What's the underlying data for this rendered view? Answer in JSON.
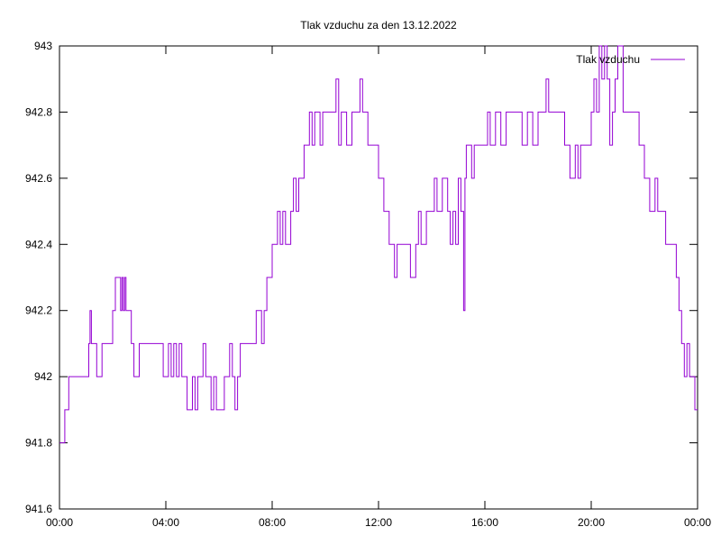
{
  "chart_data": {
    "type": "line",
    "title": "Tlak vzduchu za den 13.12.2022",
    "xlabel": "",
    "ylabel": "",
    "x_axis": {
      "min": "00:00",
      "max": "24:00",
      "ticks": [
        {
          "value": 0,
          "label": "00:00"
        },
        {
          "value": 4,
          "label": "04:00"
        },
        {
          "value": 8,
          "label": "08:00"
        },
        {
          "value": 12,
          "label": "12:00"
        },
        {
          "value": 16,
          "label": "16:00"
        },
        {
          "value": 20,
          "label": "20:00"
        },
        {
          "value": 24,
          "label": "00:00"
        }
      ]
    },
    "y_axis": {
      "min": 941.6,
      "max": 943.0,
      "ticks": [
        {
          "value": 941.6,
          "label": "941.6"
        },
        {
          "value": 941.8,
          "label": "941.8"
        },
        {
          "value": 942.0,
          "label": "942"
        },
        {
          "value": 942.2,
          "label": "942.2"
        },
        {
          "value": 942.4,
          "label": "942.4"
        },
        {
          "value": 942.6,
          "label": "942.6"
        },
        {
          "value": 942.8,
          "label": "942.8"
        },
        {
          "value": 943.0,
          "label": "943"
        }
      ]
    },
    "grid": false,
    "legend": {
      "position": "top-right",
      "entries": [
        "Tlak vzduchu"
      ]
    },
    "series": [
      {
        "name": "Tlak vzduchu",
        "color": "#9400d3",
        "x_unit": "hours",
        "x": [
          0.0,
          0.1,
          0.2,
          0.3,
          0.35,
          0.5,
          1.0,
          1.1,
          1.15,
          1.2,
          1.3,
          1.4,
          1.6,
          1.9,
          2.0,
          2.1,
          2.2,
          2.3,
          2.35,
          2.4,
          2.45,
          2.5,
          2.6,
          2.7,
          2.8,
          2.9,
          3.0,
          3.1,
          3.3,
          3.5,
          3.7,
          3.8,
          3.9,
          4.0,
          4.1,
          4.2,
          4.3,
          4.4,
          4.5,
          4.6,
          4.7,
          4.8,
          4.9,
          5.0,
          5.1,
          5.2,
          5.3,
          5.4,
          5.5,
          5.6,
          5.7,
          5.8,
          5.9,
          6.0,
          6.2,
          6.4,
          6.5,
          6.6,
          6.7,
          6.8,
          6.9,
          7.0,
          7.2,
          7.4,
          7.5,
          7.6,
          7.7,
          7.8,
          7.9,
          8.0,
          8.1,
          8.2,
          8.3,
          8.4,
          8.5,
          8.6,
          8.7,
          8.8,
          8.9,
          9.0,
          9.2,
          9.4,
          9.5,
          9.6,
          9.8,
          9.9,
          10.0,
          10.2,
          10.4,
          10.5,
          10.6,
          10.8,
          11.0,
          11.2,
          11.3,
          11.4,
          11.6,
          11.8,
          12.0,
          12.2,
          12.4,
          12.5,
          12.6,
          12.7,
          12.8,
          13.0,
          13.2,
          13.4,
          13.5,
          13.6,
          13.8,
          14.0,
          14.1,
          14.2,
          14.4,
          14.6,
          14.7,
          14.8,
          14.9,
          15.0,
          15.1,
          15.2,
          15.25,
          15.3,
          15.4,
          15.5,
          15.6,
          15.8,
          16.0,
          16.1,
          16.2,
          16.4,
          16.6,
          16.8,
          17.0,
          17.2,
          17.4,
          17.6,
          17.8,
          18.0,
          18.2,
          18.3,
          18.4,
          18.6,
          18.8,
          19.0,
          19.2,
          19.4,
          19.5,
          19.6,
          19.8,
          20.0,
          20.1,
          20.2,
          20.3,
          20.4,
          20.5,
          20.6,
          20.7,
          20.8,
          20.9,
          21.0,
          21.2,
          21.4,
          21.6,
          21.8,
          22.0,
          22.2,
          22.4,
          22.5,
          22.6,
          22.8,
          23.0,
          23.2,
          23.3,
          23.4,
          23.5,
          23.6,
          23.7,
          23.8,
          23.9,
          24.0
        ],
        "values": [
          941.8,
          941.8,
          941.9,
          941.9,
          942.0,
          942.0,
          942.0,
          942.1,
          942.2,
          942.1,
          942.1,
          942.0,
          942.1,
          942.1,
          942.2,
          942.3,
          942.3,
          942.2,
          942.3,
          942.2,
          942.3,
          942.2,
          942.2,
          942.1,
          942.0,
          942.0,
          942.1,
          942.1,
          942.1,
          942.1,
          942.1,
          942.1,
          942.0,
          942.0,
          942.1,
          942.0,
          942.1,
          942.0,
          942.1,
          942.0,
          942.0,
          941.9,
          941.9,
          942.0,
          941.9,
          942.0,
          942.0,
          942.1,
          942.0,
          942.0,
          941.9,
          942.0,
          941.9,
          941.9,
          942.0,
          942.1,
          942.0,
          941.9,
          942.0,
          942.1,
          942.1,
          942.1,
          942.1,
          942.2,
          942.2,
          942.1,
          942.2,
          942.3,
          942.3,
          942.4,
          942.4,
          942.5,
          942.4,
          942.5,
          942.4,
          942.4,
          942.5,
          942.6,
          942.5,
          942.6,
          942.7,
          942.8,
          942.7,
          942.8,
          942.7,
          942.8,
          942.8,
          942.8,
          942.9,
          942.7,
          942.8,
          942.7,
          942.8,
          942.8,
          942.9,
          942.8,
          942.7,
          942.7,
          942.6,
          942.5,
          942.4,
          942.4,
          942.3,
          942.4,
          942.4,
          942.4,
          942.3,
          942.4,
          942.5,
          942.4,
          942.5,
          942.5,
          942.6,
          942.5,
          942.6,
          942.5,
          942.4,
          942.5,
          942.4,
          942.6,
          942.5,
          942.2,
          942.6,
          942.7,
          942.7,
          942.6,
          942.7,
          942.7,
          942.7,
          942.8,
          942.7,
          942.8,
          942.7,
          942.8,
          942.8,
          942.8,
          942.7,
          942.8,
          942.7,
          942.8,
          942.8,
          942.9,
          942.8,
          942.8,
          942.8,
          942.7,
          942.6,
          942.7,
          942.6,
          942.7,
          942.7,
          942.8,
          942.9,
          942.8,
          943.0,
          942.9,
          943.0,
          942.9,
          942.7,
          942.8,
          942.9,
          943.0,
          942.8,
          942.8,
          942.8,
          942.7,
          942.6,
          942.5,
          942.6,
          942.5,
          942.5,
          942.4,
          942.4,
          942.3,
          942.2,
          942.1,
          942.0,
          942.1,
          942.0,
          942.0,
          941.9,
          941.9
        ]
      }
    ]
  }
}
